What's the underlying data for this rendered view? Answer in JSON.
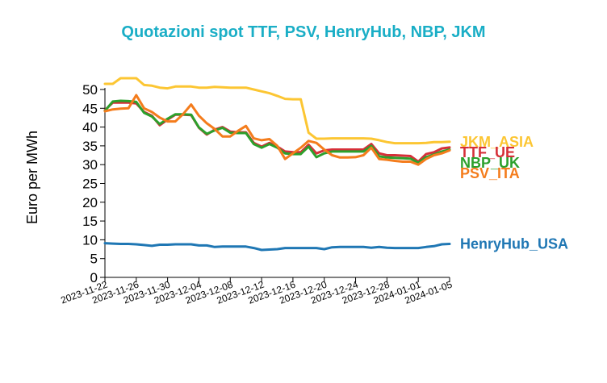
{
  "chart_data": {
    "type": "line",
    "title": "Quotazioni spot TTF, PSV, HenryHub, NBP, JKM",
    "ylabel": "Euro per MWh",
    "xlabel": "",
    "ylim": [
      0,
      53
    ],
    "xlim": [
      "2023-11-22",
      "2024-01-05"
    ],
    "y_ticks": [
      0,
      5,
      10,
      15,
      20,
      25,
      30,
      35,
      40,
      45,
      50
    ],
    "x_ticks": [
      "2023-11-22",
      "2023-11-26",
      "2023-11-30",
      "2023-12-04",
      "2023-12-08",
      "2023-12-12",
      "2023-12-16",
      "2023-12-20",
      "2023-12-24",
      "2023-12-28",
      "2024-01-01",
      "2024-01-05"
    ],
    "grid": false,
    "legend": "labels at line ends (right)",
    "title_color": "#1aaec6",
    "series": [
      {
        "name": "JKM_ASIA",
        "color": "#fcc633",
        "points": [
          [
            "2023-11-22",
            51.5
          ],
          [
            "2023-11-23",
            51.5
          ],
          [
            "2023-11-24",
            53.0
          ],
          [
            "2023-11-25",
            53.0
          ],
          [
            "2023-11-26",
            53.0
          ],
          [
            "2023-11-27",
            51.2
          ],
          [
            "2023-11-28",
            51.0
          ],
          [
            "2023-11-29",
            50.5
          ],
          [
            "2023-11-30",
            50.3
          ],
          [
            "2023-12-01",
            50.8
          ],
          [
            "2023-12-02",
            50.8
          ],
          [
            "2023-12-03",
            50.8
          ],
          [
            "2023-12-04",
            50.5
          ],
          [
            "2023-12-05",
            50.5
          ],
          [
            "2023-12-06",
            50.7
          ],
          [
            "2023-12-07",
            50.6
          ],
          [
            "2023-12-08",
            50.5
          ],
          [
            "2023-12-09",
            50.5
          ],
          [
            "2023-12-10",
            50.5
          ],
          [
            "2023-12-11",
            50.0
          ],
          [
            "2023-12-12",
            49.5
          ],
          [
            "2023-12-13",
            49.0
          ],
          [
            "2023-12-14",
            48.3
          ],
          [
            "2023-12-15",
            47.5
          ],
          [
            "2023-12-16",
            47.4
          ],
          [
            "2023-12-17",
            47.4
          ],
          [
            "2023-12-18",
            38.5
          ],
          [
            "2023-12-19",
            36.9
          ],
          [
            "2023-12-20",
            36.9
          ],
          [
            "2023-12-21",
            37.0
          ],
          [
            "2023-12-22",
            37.0
          ],
          [
            "2023-12-23",
            37.0
          ],
          [
            "2023-12-24",
            37.0
          ],
          [
            "2023-12-25",
            37.0
          ],
          [
            "2023-12-26",
            36.9
          ],
          [
            "2023-12-27",
            36.5
          ],
          [
            "2023-12-28",
            36.0
          ],
          [
            "2023-12-29",
            35.7
          ],
          [
            "2023-12-30",
            35.7
          ],
          [
            "2023-12-31",
            35.7
          ],
          [
            "2024-01-01",
            35.7
          ],
          [
            "2024-01-02",
            35.8
          ],
          [
            "2024-01-03",
            36.0
          ],
          [
            "2024-01-04",
            36.0
          ],
          [
            "2024-01-05",
            36.1
          ]
        ]
      },
      {
        "name": "TTF_UE",
        "color": "#d62f38",
        "points": [
          [
            "2023-11-22",
            44.5
          ],
          [
            "2023-11-23",
            46.5
          ],
          [
            "2023-11-24",
            46.5
          ],
          [
            "2023-11-25",
            46.5
          ],
          [
            "2023-11-26",
            46.3
          ],
          [
            "2023-11-27",
            44.0
          ],
          [
            "2023-11-28",
            43.0
          ],
          [
            "2023-11-29",
            40.5
          ],
          [
            "2023-11-30",
            42.0
          ],
          [
            "2023-12-01",
            43.3
          ],
          [
            "2023-12-02",
            43.3
          ],
          [
            "2023-12-03",
            43.2
          ],
          [
            "2023-12-04",
            39.8
          ],
          [
            "2023-12-05",
            38.0
          ],
          [
            "2023-12-06",
            39.3
          ],
          [
            "2023-12-07",
            40.0
          ],
          [
            "2023-12-08",
            38.8
          ],
          [
            "2023-12-09",
            38.6
          ],
          [
            "2023-12-10",
            38.6
          ],
          [
            "2023-12-11",
            35.8
          ],
          [
            "2023-12-12",
            34.8
          ],
          [
            "2023-12-13",
            35.8
          ],
          [
            "2023-12-14",
            34.8
          ],
          [
            "2023-12-15",
            33.5
          ],
          [
            "2023-12-16",
            33.3
          ],
          [
            "2023-12-17",
            33.3
          ],
          [
            "2023-12-18",
            35.3
          ],
          [
            "2023-12-19",
            33.0
          ],
          [
            "2023-12-20",
            33.8
          ],
          [
            "2023-12-21",
            34.0
          ],
          [
            "2023-12-22",
            34.0
          ],
          [
            "2023-12-23",
            34.0
          ],
          [
            "2023-12-24",
            34.0
          ],
          [
            "2023-12-25",
            34.0
          ],
          [
            "2023-12-26",
            35.5
          ],
          [
            "2023-12-27",
            33.0
          ],
          [
            "2023-12-28",
            32.5
          ],
          [
            "2023-12-29",
            32.5
          ],
          [
            "2023-12-30",
            32.4
          ],
          [
            "2023-12-31",
            32.3
          ],
          [
            "2024-01-01",
            30.8
          ],
          [
            "2024-01-02",
            32.8
          ],
          [
            "2024-01-03",
            33.3
          ],
          [
            "2024-01-04",
            34.3
          ],
          [
            "2024-01-05",
            34.6
          ]
        ]
      },
      {
        "name": "NBP_UK",
        "color": "#2ca02c",
        "points": [
          [
            "2023-11-22",
            44.3
          ],
          [
            "2023-11-23",
            46.8
          ],
          [
            "2023-11-24",
            47.0
          ],
          [
            "2023-11-25",
            46.9
          ],
          [
            "2023-11-26",
            46.7
          ],
          [
            "2023-11-27",
            43.8
          ],
          [
            "2023-11-28",
            42.8
          ],
          [
            "2023-11-29",
            40.8
          ],
          [
            "2023-11-30",
            42.2
          ],
          [
            "2023-12-01",
            43.4
          ],
          [
            "2023-12-02",
            43.4
          ],
          [
            "2023-12-03",
            43.3
          ],
          [
            "2023-12-04",
            39.9
          ],
          [
            "2023-12-05",
            38.2
          ],
          [
            "2023-12-06",
            39.1
          ],
          [
            "2023-12-07",
            39.8
          ],
          [
            "2023-12-08",
            38.5
          ],
          [
            "2023-12-09",
            38.4
          ],
          [
            "2023-12-10",
            38.4
          ],
          [
            "2023-12-11",
            35.5
          ],
          [
            "2023-12-12",
            34.5
          ],
          [
            "2023-12-13",
            35.5
          ],
          [
            "2023-12-14",
            34.5
          ],
          [
            "2023-12-15",
            33.0
          ],
          [
            "2023-12-16",
            32.8
          ],
          [
            "2023-12-17",
            32.8
          ],
          [
            "2023-12-18",
            34.8
          ],
          [
            "2023-12-19",
            32.0
          ],
          [
            "2023-12-20",
            33.0
          ],
          [
            "2023-12-21",
            33.5
          ],
          [
            "2023-12-22",
            33.5
          ],
          [
            "2023-12-23",
            33.5
          ],
          [
            "2023-12-24",
            33.5
          ],
          [
            "2023-12-25",
            33.5
          ],
          [
            "2023-12-26",
            35.0
          ],
          [
            "2023-12-27",
            32.2
          ],
          [
            "2023-12-28",
            31.9
          ],
          [
            "2023-12-29",
            31.8
          ],
          [
            "2023-12-30",
            31.7
          ],
          [
            "2023-12-31",
            31.6
          ],
          [
            "2024-01-01",
            30.5
          ],
          [
            "2024-01-02",
            32.0
          ],
          [
            "2024-01-03",
            32.7
          ],
          [
            "2024-01-04",
            33.5
          ],
          [
            "2024-01-05",
            34.0
          ]
        ]
      },
      {
        "name": "PSV_ITA",
        "color": "#f47c1c",
        "points": [
          [
            "2023-11-22",
            44.2
          ],
          [
            "2023-11-23",
            44.7
          ],
          [
            "2023-11-24",
            44.9
          ],
          [
            "2023-11-25",
            45.0
          ],
          [
            "2023-11-26",
            48.5
          ],
          [
            "2023-11-27",
            45.0
          ],
          [
            "2023-11-28",
            44.0
          ],
          [
            "2023-11-29",
            42.5
          ],
          [
            "2023-11-30",
            41.5
          ],
          [
            "2023-12-01",
            41.5
          ],
          [
            "2023-12-02",
            43.5
          ],
          [
            "2023-12-03",
            46.0
          ],
          [
            "2023-12-04",
            43.0
          ],
          [
            "2023-12-05",
            41.0
          ],
          [
            "2023-12-06",
            39.5
          ],
          [
            "2023-12-07",
            37.5
          ],
          [
            "2023-12-08",
            37.5
          ],
          [
            "2023-12-09",
            39.0
          ],
          [
            "2023-12-10",
            40.3
          ],
          [
            "2023-12-11",
            37.0
          ],
          [
            "2023-12-12",
            36.5
          ],
          [
            "2023-12-13",
            36.8
          ],
          [
            "2023-12-14",
            35.0
          ],
          [
            "2023-12-15",
            31.5
          ],
          [
            "2023-12-16",
            33.0
          ],
          [
            "2023-12-17",
            34.5
          ],
          [
            "2023-12-18",
            36.3
          ],
          [
            "2023-12-19",
            35.8
          ],
          [
            "2023-12-20",
            34.0
          ],
          [
            "2023-12-21",
            32.5
          ],
          [
            "2023-12-22",
            31.9
          ],
          [
            "2023-12-23",
            31.9
          ],
          [
            "2023-12-24",
            32.0
          ],
          [
            "2023-12-25",
            32.5
          ],
          [
            "2023-12-26",
            34.5
          ],
          [
            "2023-12-27",
            31.5
          ],
          [
            "2023-12-28",
            31.3
          ],
          [
            "2023-12-29",
            31.0
          ],
          [
            "2023-12-30",
            30.8
          ],
          [
            "2023-12-31",
            30.8
          ],
          [
            "2024-01-01",
            30.0
          ],
          [
            "2024-01-02",
            31.5
          ],
          [
            "2024-01-03",
            32.5
          ],
          [
            "2024-01-04",
            33.0
          ],
          [
            "2024-01-05",
            33.8
          ]
        ]
      },
      {
        "name": "HenryHub_USA",
        "color": "#1f77b4",
        "points": [
          [
            "2023-11-22",
            9.1
          ],
          [
            "2023-11-23",
            9.0
          ],
          [
            "2023-11-24",
            8.9
          ],
          [
            "2023-11-25",
            8.9
          ],
          [
            "2023-11-26",
            8.8
          ],
          [
            "2023-11-27",
            8.6
          ],
          [
            "2023-11-28",
            8.4
          ],
          [
            "2023-11-29",
            8.7
          ],
          [
            "2023-11-30",
            8.7
          ],
          [
            "2023-12-01",
            8.8
          ],
          [
            "2023-12-02",
            8.8
          ],
          [
            "2023-12-03",
            8.8
          ],
          [
            "2023-12-04",
            8.5
          ],
          [
            "2023-12-05",
            8.5
          ],
          [
            "2023-12-06",
            8.1
          ],
          [
            "2023-12-07",
            8.2
          ],
          [
            "2023-12-08",
            8.2
          ],
          [
            "2023-12-09",
            8.2
          ],
          [
            "2023-12-10",
            8.2
          ],
          [
            "2023-12-11",
            7.8
          ],
          [
            "2023-12-12",
            7.3
          ],
          [
            "2023-12-13",
            7.4
          ],
          [
            "2023-12-14",
            7.5
          ],
          [
            "2023-12-15",
            7.8
          ],
          [
            "2023-12-16",
            7.8
          ],
          [
            "2023-12-17",
            7.8
          ],
          [
            "2023-12-18",
            7.8
          ],
          [
            "2023-12-19",
            7.8
          ],
          [
            "2023-12-20",
            7.5
          ],
          [
            "2023-12-21",
            8.0
          ],
          [
            "2023-12-22",
            8.1
          ],
          [
            "2023-12-23",
            8.1
          ],
          [
            "2023-12-24",
            8.1
          ],
          [
            "2023-12-25",
            8.1
          ],
          [
            "2023-12-26",
            7.9
          ],
          [
            "2023-12-27",
            8.1
          ],
          [
            "2023-12-28",
            7.9
          ],
          [
            "2023-12-29",
            7.8
          ],
          [
            "2023-12-30",
            7.8
          ],
          [
            "2023-12-31",
            7.8
          ],
          [
            "2024-01-01",
            7.8
          ],
          [
            "2024-01-02",
            8.1
          ],
          [
            "2024-01-03",
            8.3
          ],
          [
            "2024-01-04",
            8.8
          ],
          [
            "2024-01-05",
            8.9
          ]
        ]
      }
    ]
  }
}
